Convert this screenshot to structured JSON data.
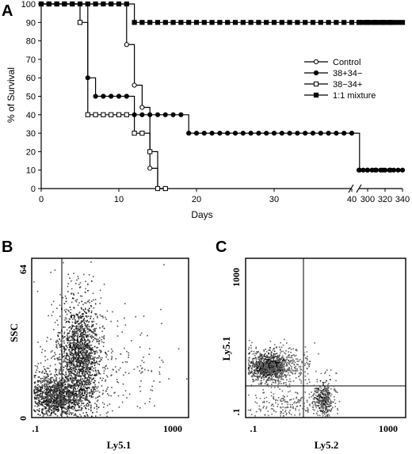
{
  "panel_letters": {
    "a": "A",
    "b": "B",
    "c": "C"
  },
  "chart_data": [
    {
      "type": "line",
      "panel": "A",
      "xlabel": "Days",
      "ylabel": "% of Survival",
      "xlim": [
        0,
        340
      ],
      "ylim": [
        0,
        100
      ],
      "x_ticks": [
        "0",
        "10",
        "20",
        "30",
        "40",
        "300",
        "320",
        "340"
      ],
      "y_ticks": [
        "0",
        "10",
        "20",
        "30",
        "40",
        "50",
        "60",
        "70",
        "80",
        "90",
        "100"
      ],
      "axis_break": "between 45 and 290 days",
      "legend_position": "right",
      "series": [
        {
          "name": "Control",
          "marker": "open-circle",
          "x": [
            0,
            11,
            12,
            13,
            14,
            15,
            16
          ],
          "y": [
            100,
            78,
            56,
            44,
            11,
            0,
            0
          ]
        },
        {
          "name": "38+34−",
          "marker": "filled-circle",
          "x": [
            0,
            6,
            7,
            12,
            19,
            41,
            340
          ],
          "y": [
            100,
            60,
            50,
            40,
            30,
            10,
            10
          ]
        },
        {
          "name": "38−34+",
          "marker": "open-square",
          "x": [
            0,
            5,
            6,
            12,
            14,
            15,
            16
          ],
          "y": [
            100,
            90,
            40,
            30,
            20,
            0,
            0
          ]
        },
        {
          "name": "1:1 mixture",
          "marker": "filled-square",
          "x": [
            0,
            12,
            340
          ],
          "y": [
            100,
            90,
            90
          ]
        }
      ]
    },
    {
      "type": "scatter",
      "panel": "B",
      "xlabel": "Ly5.1",
      "ylabel": "SSC",
      "x_ticks": [
        ".1",
        "1000"
      ],
      "y_ticks": [
        "0",
        "64"
      ],
      "x_scale": "log",
      "gate_lines": "vertical quadrant line"
    },
    {
      "type": "scatter",
      "panel": "C",
      "xlabel": "Ly5.2",
      "ylabel": "Ly5.1",
      "x_ticks": [
        ".1",
        "1000"
      ],
      "y_ticks": [
        ".1",
        "1000"
      ],
      "x_scale": "log",
      "y_scale": "log",
      "gate_lines": "quadrant cross"
    }
  ]
}
